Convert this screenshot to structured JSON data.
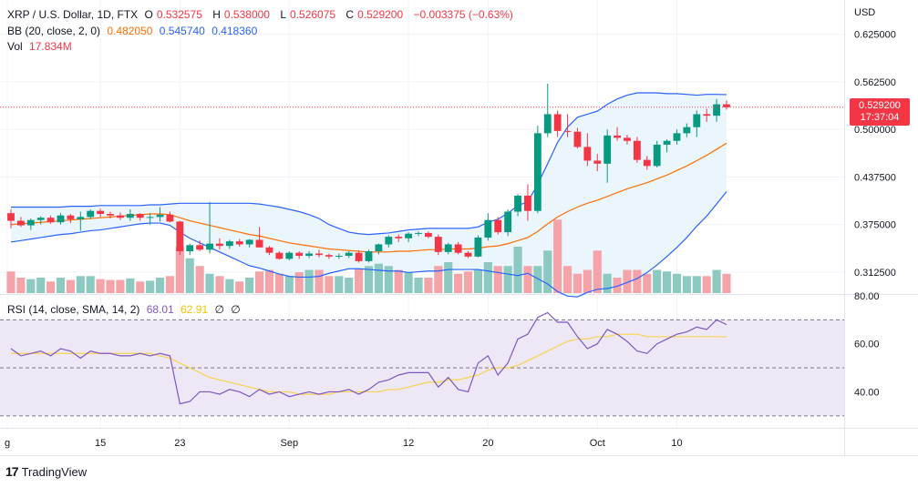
{
  "header": {
    "symbol": "XRP / U.S. Dollar, 1D, FTX",
    "o_label": "O",
    "o_val": "0.532575",
    "h_label": "H",
    "h_val": "0.538000",
    "l_label": "L",
    "l_val": "0.526075",
    "c_label": "C",
    "c_val": "0.529200",
    "change": "−0.003375 (−0.63%)",
    "bb_label": "BB (20, close, 2, 0)",
    "bb_basis": "0.482050",
    "bb_upper": "0.545740",
    "bb_lower": "0.418360",
    "vol_label": "Vol",
    "vol_val": "17.834M"
  },
  "rsi_legend": {
    "label": "RSI (14, close, SMA, 14, 2)",
    "rsi_val": "68.01",
    "sma_val": "62.91",
    "extra1": "∅",
    "extra2": "∅"
  },
  "axis": {
    "currency": "USD",
    "price_ticks": [
      "0.625000",
      "0.562500",
      "0.500000",
      "0.437500",
      "0.375000",
      "0.312500"
    ],
    "rsi_ticks": [
      "80.00",
      "60.00",
      "40.00"
    ],
    "date_ticks": [
      "g",
      "15",
      "23",
      "Sep",
      "12",
      "20",
      "Oct",
      "10"
    ]
  },
  "price_tag": {
    "price": "0.529200",
    "countdown": "17:37:04"
  },
  "branding": {
    "name": "TradingView",
    "icon": "tradingview-logo-icon"
  },
  "colors": {
    "up": "#089981",
    "down": "#f23645",
    "bb_basis": "#ff6d00",
    "bb_bands": "#2962ff",
    "bb_fill": "#e8f4fc",
    "vol_up": "#8cc9c1",
    "vol_down": "#f4a4a9",
    "rsi_line": "#7e57c2",
    "rsi_sma": "#f6d54e",
    "rsi_band_fill": "#ede7f6"
  },
  "chart_data": {
    "type": "candlestick",
    "ylim": [
      0.285,
      0.67
    ],
    "rsi_ylim": [
      25,
      80
    ],
    "rsi_levels": [
      70,
      50,
      30
    ],
    "candles": [
      [
        0.39,
        0.395,
        0.37,
        0.38
      ],
      [
        0.38,
        0.385,
        0.372,
        0.374
      ],
      [
        0.374,
        0.383,
        0.368,
        0.381
      ],
      [
        0.381,
        0.386,
        0.375,
        0.384
      ],
      [
        0.384,
        0.387,
        0.376,
        0.378
      ],
      [
        0.378,
        0.39,
        0.375,
        0.387
      ],
      [
        0.387,
        0.389,
        0.377,
        0.382
      ],
      [
        0.382,
        0.392,
        0.367,
        0.385
      ],
      [
        0.385,
        0.395,
        0.382,
        0.393
      ],
      [
        0.393,
        0.396,
        0.385,
        0.389
      ],
      [
        0.389,
        0.392,
        0.383,
        0.387
      ],
      [
        0.387,
        0.391,
        0.381,
        0.384
      ],
      [
        0.384,
        0.395,
        0.38,
        0.389
      ],
      [
        0.389,
        0.39,
        0.38,
        0.384
      ],
      [
        0.384,
        0.39,
        0.375,
        0.385
      ],
      [
        0.385,
        0.398,
        0.379,
        0.388
      ],
      [
        0.388,
        0.392,
        0.378,
        0.379
      ],
      [
        0.379,
        0.38,
        0.335,
        0.34
      ],
      [
        0.34,
        0.35,
        0.335,
        0.348
      ],
      [
        0.348,
        0.354,
        0.34,
        0.342
      ],
      [
        0.342,
        0.405,
        0.337,
        0.35
      ],
      [
        0.35,
        0.357,
        0.342,
        0.347
      ],
      [
        0.347,
        0.355,
        0.343,
        0.353
      ],
      [
        0.353,
        0.356,
        0.346,
        0.349
      ],
      [
        0.349,
        0.356,
        0.345,
        0.355
      ],
      [
        0.355,
        0.372,
        0.345,
        0.345
      ],
      [
        0.345,
        0.347,
        0.335,
        0.338
      ],
      [
        0.338,
        0.34,
        0.329,
        0.33
      ],
      [
        0.33,
        0.34,
        0.328,
        0.338
      ],
      [
        0.338,
        0.34,
        0.33,
        0.334
      ],
      [
        0.334,
        0.34,
        0.331,
        0.337
      ],
      [
        0.337,
        0.342,
        0.332,
        0.335
      ],
      [
        0.335,
        0.337,
        0.33,
        0.333
      ],
      [
        0.333,
        0.337,
        0.33,
        0.334
      ],
      [
        0.334,
        0.34,
        0.331,
        0.338
      ],
      [
        0.338,
        0.341,
        0.325,
        0.327
      ],
      [
        0.327,
        0.342,
        0.325,
        0.34
      ],
      [
        0.34,
        0.35,
        0.336,
        0.349
      ],
      [
        0.349,
        0.361,
        0.345,
        0.359
      ],
      [
        0.359,
        0.362,
        0.352,
        0.357
      ],
      [
        0.357,
        0.365,
        0.352,
        0.363
      ],
      [
        0.363,
        0.366,
        0.36,
        0.364
      ],
      [
        0.364,
        0.366,
        0.357,
        0.359
      ],
      [
        0.359,
        0.362,
        0.335,
        0.339
      ],
      [
        0.339,
        0.351,
        0.336,
        0.349
      ],
      [
        0.349,
        0.352,
        0.336,
        0.338
      ],
      [
        0.338,
        0.34,
        0.331,
        0.333
      ],
      [
        0.333,
        0.361,
        0.332,
        0.358
      ],
      [
        0.358,
        0.39,
        0.354,
        0.381
      ],
      [
        0.381,
        0.385,
        0.362,
        0.365
      ],
      [
        0.365,
        0.395,
        0.36,
        0.392
      ],
      [
        0.392,
        0.415,
        0.386,
        0.413
      ],
      [
        0.413,
        0.428,
        0.38,
        0.393
      ],
      [
        0.393,
        0.505,
        0.39,
        0.495
      ],
      [
        0.495,
        0.56,
        0.49,
        0.52
      ],
      [
        0.52,
        0.525,
        0.49,
        0.498
      ],
      [
        0.498,
        0.52,
        0.49,
        0.497
      ],
      [
        0.497,
        0.502,
        0.475,
        0.477
      ],
      [
        0.477,
        0.495,
        0.452,
        0.459
      ],
      [
        0.459,
        0.468,
        0.445,
        0.455
      ],
      [
        0.455,
        0.5,
        0.43,
        0.492
      ],
      [
        0.492,
        0.503,
        0.485,
        0.489
      ],
      [
        0.489,
        0.493,
        0.48,
        0.485
      ],
      [
        0.485,
        0.49,
        0.456,
        0.46
      ],
      [
        0.46,
        0.465,
        0.447,
        0.452
      ],
      [
        0.452,
        0.485,
        0.45,
        0.48
      ],
      [
        0.48,
        0.487,
        0.47,
        0.485
      ],
      [
        0.485,
        0.5,
        0.48,
        0.495
      ],
      [
        0.495,
        0.508,
        0.49,
        0.503
      ],
      [
        0.503,
        0.525,
        0.49,
        0.52
      ],
      [
        0.52,
        0.527,
        0.51,
        0.518
      ],
      [
        0.518,
        0.54,
        0.51,
        0.533
      ],
      [
        0.533,
        0.538,
        0.526,
        0.5292
      ]
    ],
    "volume": [
      0.28,
      0.2,
      0.18,
      0.2,
      0.15,
      0.2,
      0.17,
      0.22,
      0.22,
      0.18,
      0.17,
      0.17,
      0.19,
      0.15,
      0.16,
      0.2,
      0.22,
      0.6,
      0.45,
      0.35,
      0.25,
      0.22,
      0.18,
      0.15,
      0.2,
      0.28,
      0.3,
      0.25,
      0.22,
      0.27,
      0.3,
      0.3,
      0.22,
      0.22,
      0.2,
      0.32,
      0.35,
      0.38,
      0.35,
      0.3,
      0.27,
      0.2,
      0.2,
      0.35,
      0.4,
      0.25,
      0.28,
      0.3,
      0.4,
      0.35,
      0.35,
      0.6,
      0.35,
      0.35,
      0.55,
      0.95,
      0.35,
      0.25,
      0.3,
      0.55,
      0.25,
      0.2,
      0.3,
      0.3,
      0.25,
      0.3,
      0.28,
      0.25,
      0.22,
      0.22,
      0.22,
      0.3,
      0.25
    ],
    "bb_basis": [
      0.375,
      0.376,
      0.377,
      0.378,
      0.379,
      0.38,
      0.381,
      0.382,
      0.383,
      0.384,
      0.385,
      0.386,
      0.387,
      0.388,
      0.389,
      0.389,
      0.388,
      0.384,
      0.38,
      0.377,
      0.374,
      0.371,
      0.368,
      0.365,
      0.362,
      0.36,
      0.357,
      0.354,
      0.351,
      0.349,
      0.347,
      0.345,
      0.343,
      0.342,
      0.341,
      0.34,
      0.339,
      0.339,
      0.339,
      0.34,
      0.34,
      0.341,
      0.342,
      0.342,
      0.343,
      0.343,
      0.343,
      0.344,
      0.346,
      0.347,
      0.35,
      0.354,
      0.358,
      0.366,
      0.376,
      0.385,
      0.392,
      0.398,
      0.403,
      0.407,
      0.412,
      0.417,
      0.422,
      0.426,
      0.43,
      0.435,
      0.44,
      0.446,
      0.452,
      0.459,
      0.466,
      0.474,
      0.482
    ],
    "bb_upper": [
      0.398,
      0.398,
      0.398,
      0.398,
      0.398,
      0.398,
      0.399,
      0.399,
      0.399,
      0.4,
      0.4,
      0.4,
      0.4,
      0.4,
      0.401,
      0.401,
      0.402,
      0.403,
      0.403,
      0.403,
      0.403,
      0.403,
      0.403,
      0.403,
      0.403,
      0.402,
      0.4,
      0.398,
      0.395,
      0.392,
      0.388,
      0.383,
      0.375,
      0.37,
      0.365,
      0.363,
      0.362,
      0.363,
      0.364,
      0.366,
      0.368,
      0.369,
      0.37,
      0.37,
      0.37,
      0.37,
      0.37,
      0.372,
      0.378,
      0.382,
      0.39,
      0.4,
      0.405,
      0.428,
      0.455,
      0.483,
      0.503,
      0.516,
      0.52,
      0.524,
      0.533,
      0.54,
      0.545,
      0.548,
      0.548,
      0.548,
      0.547,
      0.547,
      0.546,
      0.545,
      0.546,
      0.546,
      0.5457
    ],
    "bb_lower": [
      0.352,
      0.354,
      0.356,
      0.358,
      0.36,
      0.362,
      0.363,
      0.365,
      0.367,
      0.368,
      0.37,
      0.372,
      0.374,
      0.376,
      0.377,
      0.377,
      0.374,
      0.365,
      0.357,
      0.351,
      0.345,
      0.339,
      0.333,
      0.327,
      0.321,
      0.318,
      0.314,
      0.31,
      0.307,
      0.306,
      0.306,
      0.307,
      0.311,
      0.314,
      0.317,
      0.317,
      0.316,
      0.315,
      0.314,
      0.314,
      0.312,
      0.313,
      0.314,
      0.314,
      0.316,
      0.316,
      0.316,
      0.316,
      0.314,
      0.312,
      0.31,
      0.308,
      0.311,
      0.304,
      0.297,
      0.287,
      0.281,
      0.28,
      0.286,
      0.29,
      0.291,
      0.294,
      0.299,
      0.304,
      0.312,
      0.322,
      0.333,
      0.345,
      0.358,
      0.373,
      0.386,
      0.402,
      0.41836
    ],
    "rsi": [
      58,
      55,
      56,
      57,
      55,
      58,
      57,
      54,
      57,
      56,
      56,
      55,
      55,
      56,
      55,
      56,
      55,
      35,
      36,
      40,
      40,
      39,
      41,
      40,
      38,
      41,
      39,
      40,
      38,
      39,
      40,
      39,
      40,
      40,
      41,
      39,
      41,
      44,
      45,
      47,
      48,
      48,
      48,
      42,
      46,
      41,
      40,
      52,
      55,
      47,
      52,
      62,
      64,
      71,
      73,
      69,
      69,
      63,
      58,
      60,
      66,
      64,
      61,
      57,
      56,
      60,
      62,
      64,
      65,
      67,
      66,
      70,
      68
    ],
    "rsi_sma": [
      56,
      56,
      56,
      56,
      56,
      56,
      56,
      56,
      56,
      56,
      56,
      56,
      56,
      56,
      56,
      55,
      54,
      52,
      50,
      48,
      46,
      45,
      44,
      43,
      42,
      41,
      40,
      40,
      40,
      39,
      39,
      39,
      39,
      40,
      40,
      40,
      40,
      40,
      41,
      41,
      42,
      43,
      44,
      44,
      45,
      45,
      46,
      47,
      49,
      50,
      50,
      51,
      53,
      55,
      57,
      59,
      61,
      62,
      62,
      63,
      63,
      64,
      64,
      64,
      63,
      63,
      63,
      63,
      63,
      63,
      63,
      63,
      62.9
    ]
  }
}
